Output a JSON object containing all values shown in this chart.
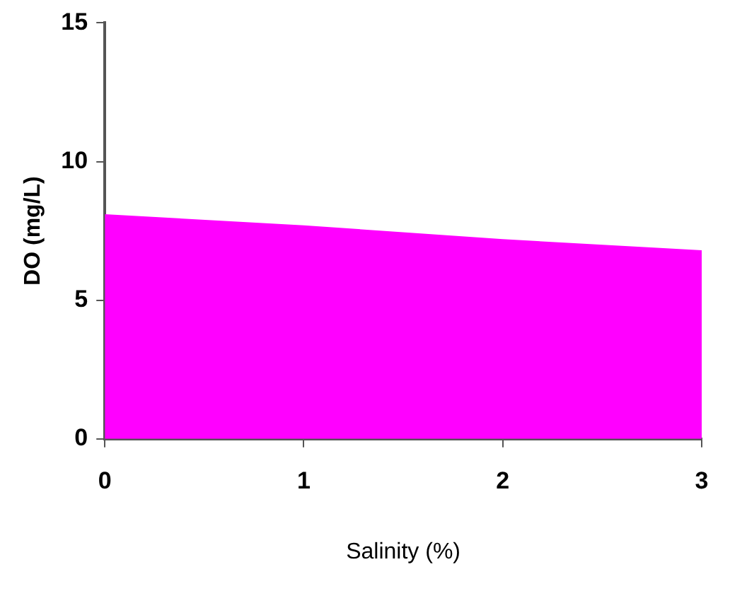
{
  "chart_data": {
    "type": "area",
    "xlabel": "Salinity (%)",
    "ylabel": "DO (mg/L)",
    "x": [
      0,
      1,
      2,
      3
    ],
    "series": [
      {
        "color": "#ff00ff",
        "values": [
          8.1,
          7.7,
          7.2,
          6.8
        ]
      }
    ],
    "xlim": [
      0,
      3
    ],
    "xticks": [
      0,
      1,
      2,
      3
    ],
    "ylim": [
      0,
      15
    ],
    "yticks": [
      0,
      5,
      10,
      15
    ],
    "grid": false,
    "legend": false
  }
}
